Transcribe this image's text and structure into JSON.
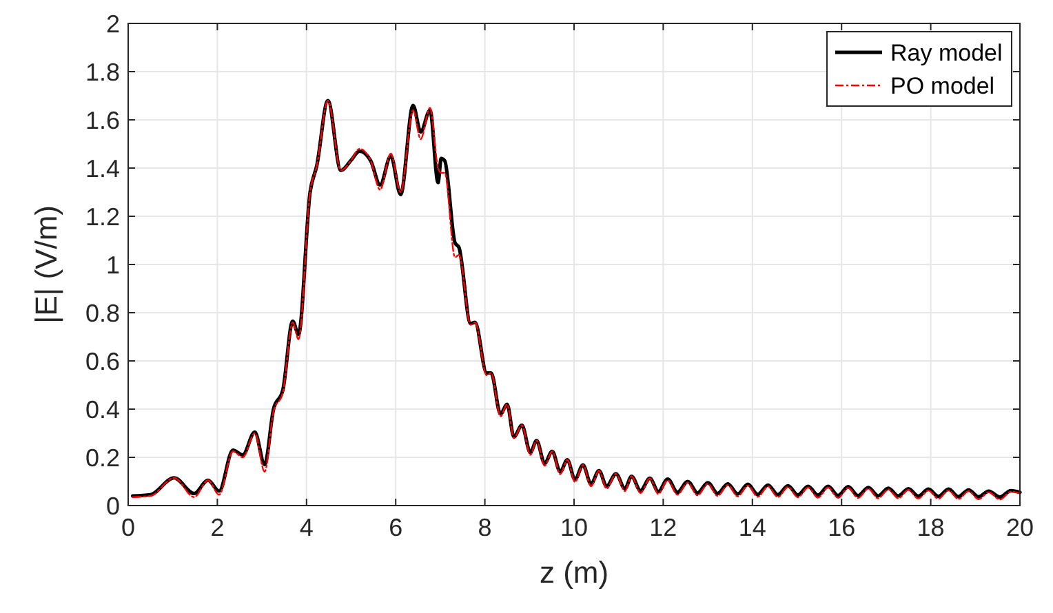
{
  "chart_data": {
    "type": "line",
    "xlabel": "z (m)",
    "ylabel": "|E| (V/m)",
    "xlim": [
      0,
      20
    ],
    "ylim": [
      0,
      2
    ],
    "xticks": [
      0,
      2,
      4,
      6,
      8,
      10,
      12,
      14,
      16,
      18,
      20
    ],
    "yticks": [
      0,
      0.2,
      0.4,
      0.6,
      0.8,
      1,
      1.2,
      1.4,
      1.6,
      1.8,
      2
    ],
    "grid": true,
    "legend": "top right",
    "marker": "none",
    "x": [
      0.1,
      0.5,
      1.03,
      1.48,
      1.79,
      2.04,
      2.35,
      2.57,
      2.84,
      3.06,
      3.26,
      3.47,
      3.69,
      3.82,
      4.08,
      4.23,
      4.48,
      4.77,
      4.99,
      5.19,
      5.44,
      5.65,
      5.89,
      6.11,
      6.39,
      6.56,
      6.77,
      6.95,
      7.02,
      7.1,
      7.33,
      7.42,
      7.68,
      7.78,
      8.04,
      8.14,
      8.35,
      8.5,
      8.65,
      8.83,
      9.02,
      9.16,
      9.34,
      9.51,
      9.69,
      9.85,
      10.02,
      10.2,
      10.38,
      10.56,
      10.73,
      10.94,
      11.14,
      11.29,
      11.49,
      11.7,
      11.89,
      12.1,
      12.32,
      12.55,
      12.77,
      13.0,
      13.22,
      13.45,
      13.67,
      13.9,
      14.12,
      14.35,
      14.57,
      14.8,
      15.02,
      15.25,
      15.47,
      15.7,
      15.92,
      16.15,
      16.37,
      16.6,
      16.82,
      17.05,
      17.27,
      17.5,
      17.72,
      17.95,
      18.17,
      18.4,
      18.62,
      18.85,
      19.07,
      19.3,
      19.55,
      19.8,
      20
    ],
    "series": [
      {
        "name": "Ray model",
        "color": "#000000",
        "line_style": "solid",
        "values": [
          0.04,
          0.045,
          0.115,
          0.05,
          0.105,
          0.06,
          0.23,
          0.21,
          0.305,
          0.17,
          0.4,
          0.48,
          0.765,
          0.71,
          1.3,
          1.41,
          1.68,
          1.39,
          1.43,
          1.47,
          1.43,
          1.33,
          1.45,
          1.29,
          1.66,
          1.55,
          1.64,
          1.34,
          1.44,
          1.43,
          1.09,
          1.07,
          0.755,
          0.76,
          0.55,
          0.55,
          0.38,
          0.42,
          0.285,
          0.333,
          0.22,
          0.27,
          0.175,
          0.225,
          0.14,
          0.19,
          0.108,
          0.168,
          0.09,
          0.145,
          0.08,
          0.132,
          0.07,
          0.121,
          0.062,
          0.113,
          0.058,
          0.11,
          0.055,
          0.1,
          0.052,
          0.095,
          0.05,
          0.09,
          0.048,
          0.088,
          0.046,
          0.085,
          0.045,
          0.082,
          0.044,
          0.08,
          0.043,
          0.08,
          0.042,
          0.078,
          0.041,
          0.075,
          0.04,
          0.072,
          0.04,
          0.07,
          0.039,
          0.068,
          0.038,
          0.068,
          0.037,
          0.065,
          0.036,
          0.06,
          0.035,
          0.062,
          0.055
        ]
      },
      {
        "name": "PO model",
        "color": "#ff0000",
        "line_style": "dashed",
        "values": [
          0.035,
          0.04,
          0.115,
          0.035,
          0.105,
          0.045,
          0.225,
          0.2,
          0.3,
          0.14,
          0.39,
          0.47,
          0.76,
          0.69,
          1.3,
          1.41,
          1.68,
          1.39,
          1.43,
          1.48,
          1.43,
          1.31,
          1.46,
          1.3,
          1.64,
          1.52,
          1.65,
          1.4,
          1.38,
          1.38,
          1.03,
          1.04,
          0.75,
          0.76,
          0.54,
          0.55,
          0.37,
          0.42,
          0.28,
          0.333,
          0.21,
          0.27,
          0.165,
          0.225,
          0.13,
          0.19,
          0.098,
          0.168,
          0.08,
          0.145,
          0.07,
          0.132,
          0.06,
          0.121,
          0.052,
          0.113,
          0.048,
          0.105,
          0.045,
          0.095,
          0.042,
          0.09,
          0.04,
          0.085,
          0.038,
          0.083,
          0.036,
          0.08,
          0.035,
          0.077,
          0.034,
          0.075,
          0.033,
          0.075,
          0.032,
          0.073,
          0.031,
          0.07,
          0.03,
          0.067,
          0.03,
          0.065,
          0.029,
          0.063,
          0.028,
          0.063,
          0.027,
          0.06,
          0.026,
          0.055,
          0.025,
          0.057,
          0.05
        ]
      }
    ]
  }
}
